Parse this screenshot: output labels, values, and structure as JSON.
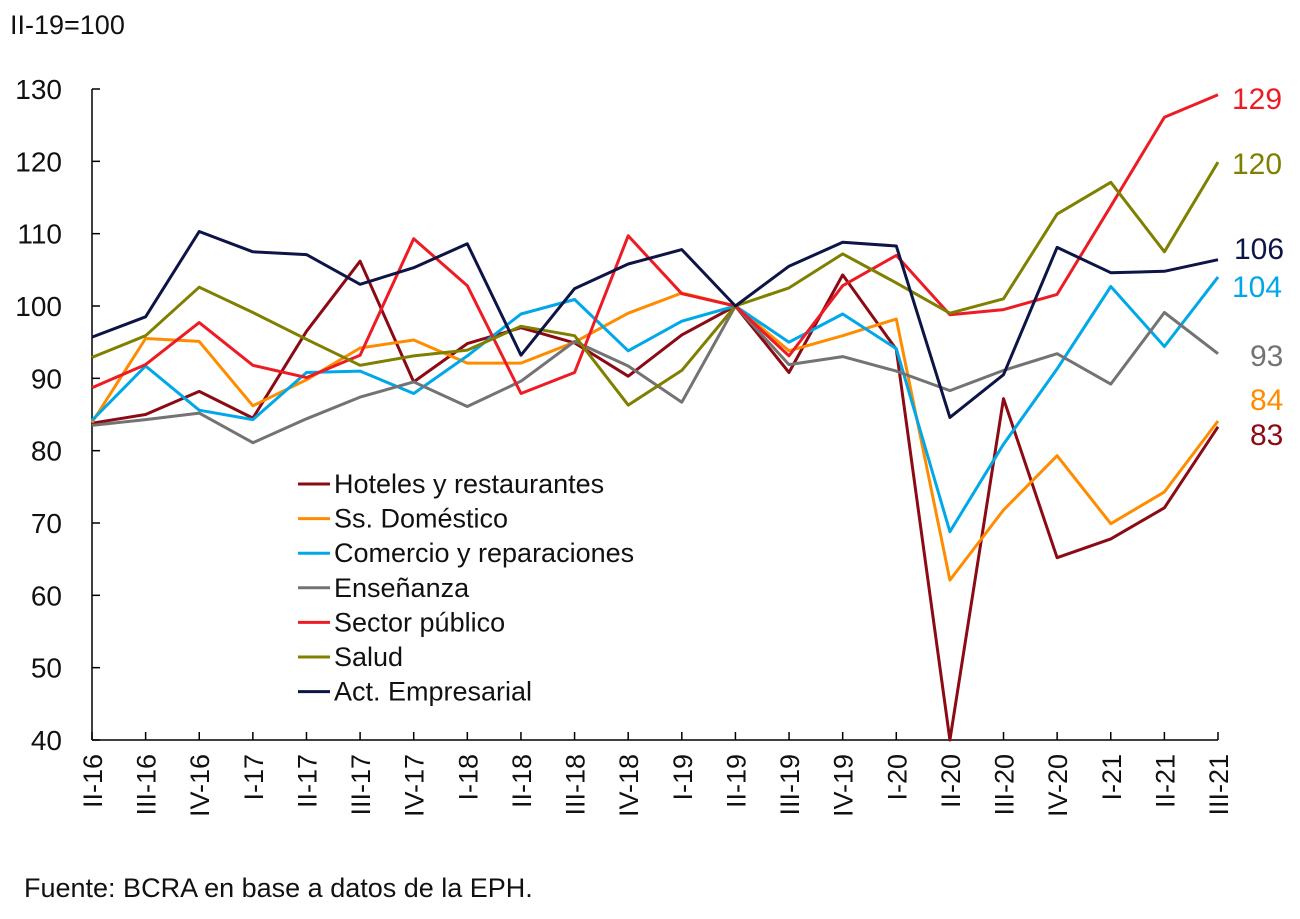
{
  "chart_data": {
    "type": "line",
    "unit_label": "II-19=100",
    "source": "Fuente: BCRA en base a datos de la EPH.",
    "ylim": [
      40,
      130
    ],
    "yticks": [
      40,
      50,
      60,
      70,
      80,
      90,
      100,
      110,
      120,
      130
    ],
    "categories": [
      "II-16",
      "III-16",
      "IV-16",
      "I-17",
      "II-17",
      "III-17",
      "IV-17",
      "I-18",
      "II-18",
      "III-18",
      "IV-18",
      "I-19",
      "II-19",
      "III-19",
      "IV-19",
      "I-20",
      "II-20",
      "III-20",
      "IV-20",
      "I-21",
      "II-21",
      "III-21"
    ],
    "series": [
      {
        "name": "Hoteles y restaurantes",
        "color": "#8B0A14",
        "end_label": "83",
        "values": [
          83.8,
          85.0,
          88.2,
          84.5,
          96.5,
          106.2,
          89.5,
          94.8,
          97.0,
          94.9,
          90.3,
          96.0,
          100.0,
          90.8,
          104.3,
          94.0,
          40.0,
          87.2,
          65.2,
          67.8,
          72.1,
          83.3
        ]
      },
      {
        "name": "Ss. Doméstico",
        "color": "#FF8C00",
        "end_label": "84",
        "values": [
          83.9,
          95.5,
          95.1,
          86.2,
          89.8,
          94.2,
          95.3,
          92.1,
          92.1,
          95.0,
          99.0,
          101.8,
          100.0,
          93.8,
          95.9,
          98.2,
          62.1,
          71.8,
          79.3,
          69.9,
          74.3,
          84.1
        ]
      },
      {
        "name": "Comercio y reparaciones",
        "color": "#00A8E8",
        "end_label": "104",
        "values": [
          84.2,
          91.7,
          85.6,
          84.3,
          90.8,
          91.0,
          87.9,
          93.1,
          98.9,
          100.9,
          93.8,
          97.9,
          100.0,
          95.0,
          98.9,
          94.1,
          68.8,
          80.9,
          91.3,
          102.7,
          94.4,
          104.0
        ]
      },
      {
        "name": "Enseñanza",
        "color": "#737373",
        "end_label": "93",
        "values": [
          83.5,
          84.3,
          85.2,
          81.1,
          84.4,
          87.4,
          89.5,
          86.1,
          89.6,
          95.1,
          91.7,
          86.7,
          100.0,
          91.9,
          93.0,
          91.0,
          88.3,
          91.1,
          93.4,
          89.2,
          99.1,
          93.4
        ]
      },
      {
        "name": "Sector público",
        "color": "#ED1C24",
        "end_label": "129",
        "values": [
          88.7,
          91.9,
          97.7,
          91.8,
          90.1,
          93.2,
          109.3,
          102.8,
          87.9,
          90.8,
          109.7,
          101.7,
          100.0,
          93.1,
          102.8,
          107.0,
          98.8,
          99.5,
          101.6,
          113.8,
          126.1,
          129.2
        ]
      },
      {
        "name": "Salud",
        "color": "#7F7F00",
        "end_label": "120",
        "values": [
          92.9,
          95.9,
          102.6,
          99.1,
          95.4,
          91.8,
          93.1,
          93.9,
          97.2,
          95.9,
          86.3,
          91.1,
          100.0,
          102.5,
          107.2,
          103.2,
          99.0,
          101.0,
          112.7,
          117.1,
          107.5,
          119.9
        ]
      },
      {
        "name": "Act. Empresarial",
        "color": "#0D1446",
        "end_label": "106",
        "values": [
          95.7,
          98.5,
          110.3,
          107.5,
          107.1,
          103.0,
          105.3,
          108.6,
          93.2,
          102.4,
          105.8,
          107.8,
          100.0,
          105.5,
          108.8,
          108.3,
          84.6,
          90.5,
          108.1,
          104.6,
          104.8,
          106.4
        ]
      }
    ]
  }
}
